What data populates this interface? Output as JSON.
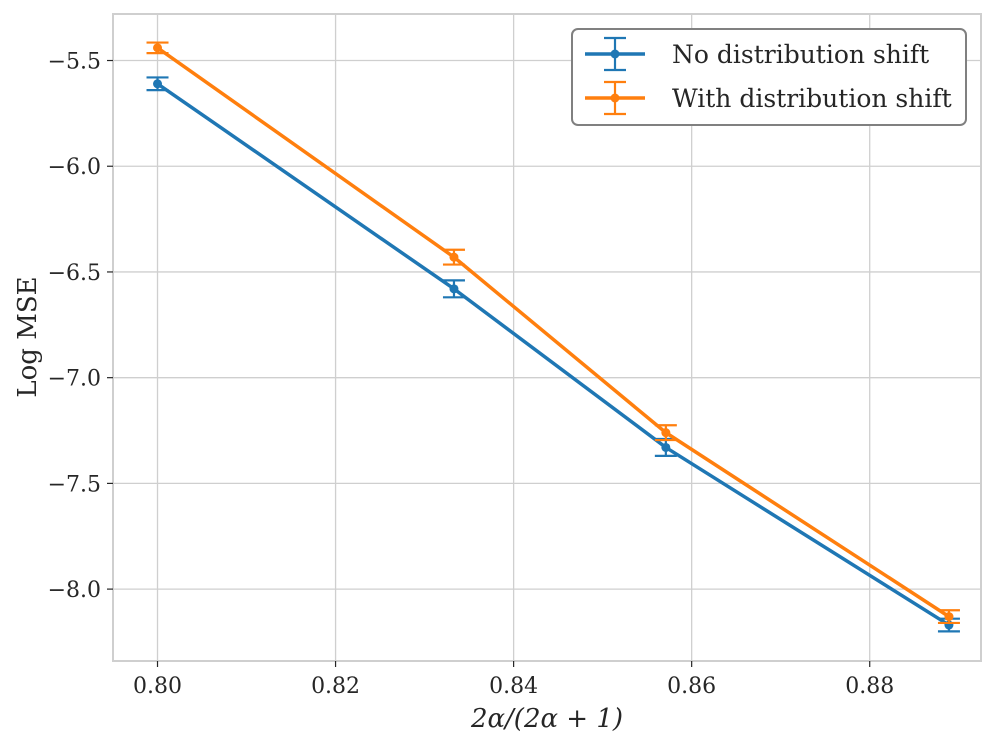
{
  "chart_data": {
    "type": "line",
    "title": "",
    "xlabel": "2α/(2α + 1)",
    "ylabel": "Log MSE",
    "x": [
      0.8,
      0.8333,
      0.8571,
      0.8889
    ],
    "xlim": [
      0.795,
      0.8925
    ],
    "ylim": [
      -8.34,
      -5.28
    ],
    "xticks": [
      0.8,
      0.82,
      0.84,
      0.86,
      0.88
    ],
    "xtick_labels": [
      "0.80",
      "0.82",
      "0.84",
      "0.86",
      "0.88"
    ],
    "yticks": [
      -5.5,
      -6.0,
      -6.5,
      -7.0,
      -7.5,
      -8.0
    ],
    "ytick_labels": [
      "−5.5",
      "−6.0",
      "−6.5",
      "−7.0",
      "−7.5",
      "−8.0"
    ],
    "grid": true,
    "legend_position": "top-right",
    "series": [
      {
        "name": "No distribution shift",
        "color": "#1f77b4",
        "values": [
          -5.61,
          -6.58,
          -7.33,
          -8.17
        ],
        "errors": [
          0.03,
          0.04,
          0.04,
          0.03
        ]
      },
      {
        "name": "With distribution shift",
        "color": "#ff7f0e",
        "values": [
          -5.44,
          -6.43,
          -7.26,
          -8.13
        ],
        "errors": [
          0.025,
          0.035,
          0.035,
          0.03
        ]
      }
    ]
  }
}
